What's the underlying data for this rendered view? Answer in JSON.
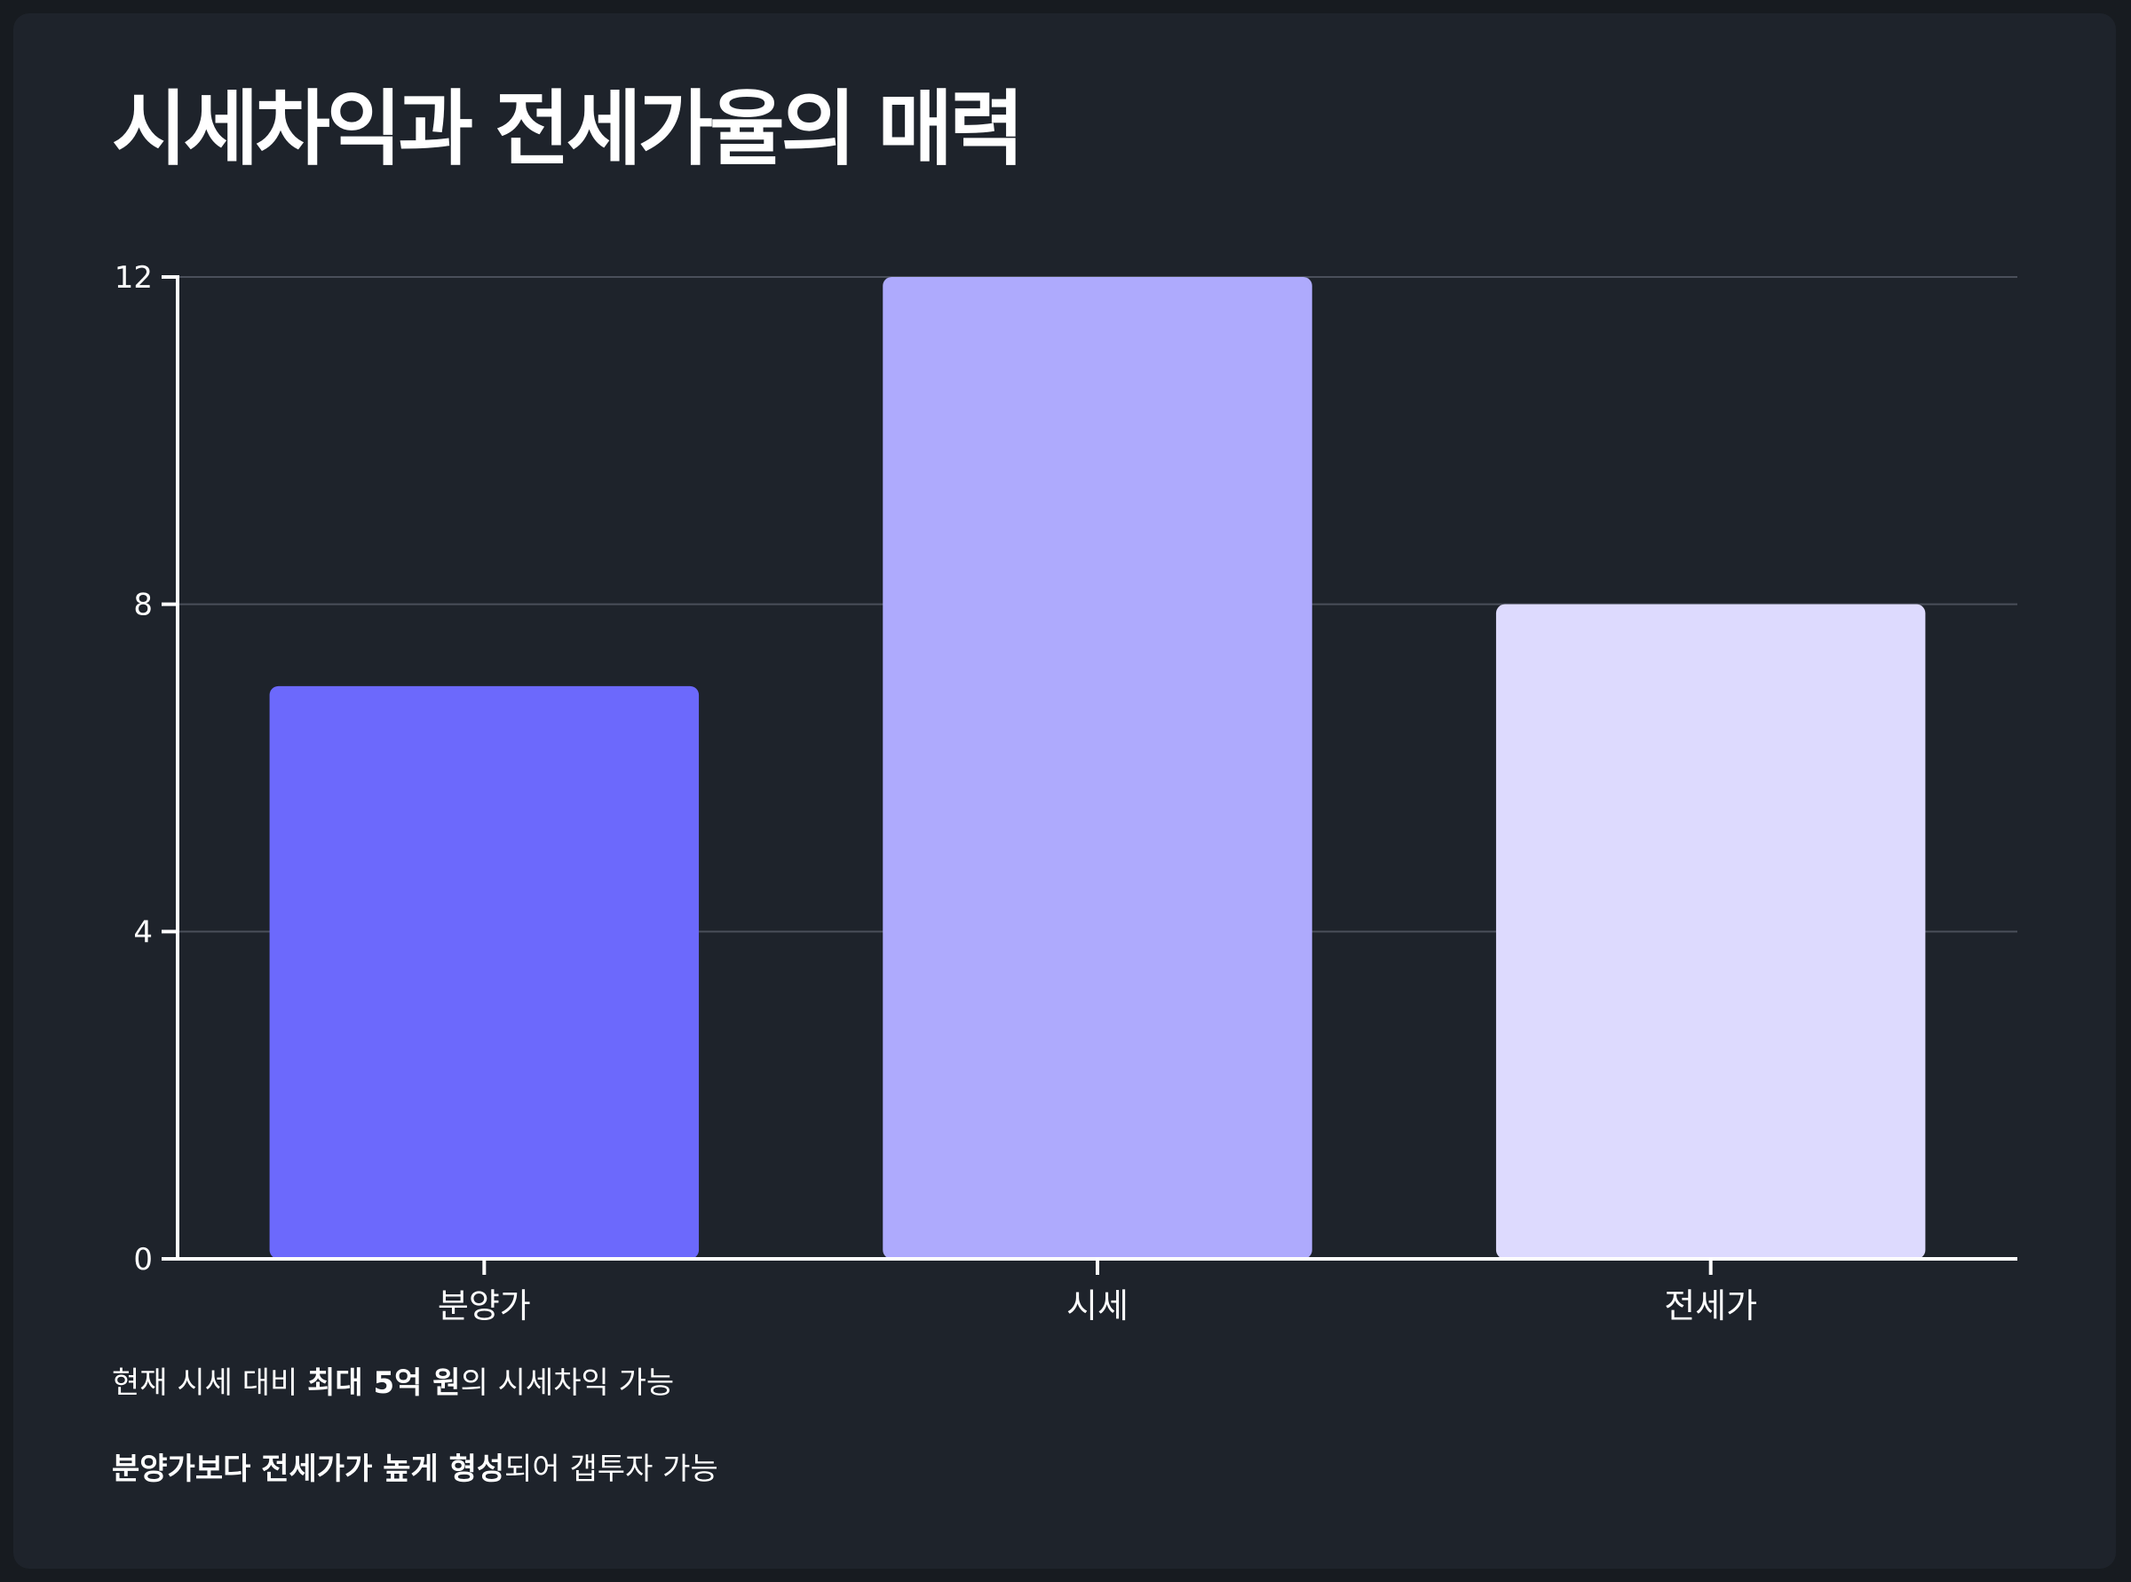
{
  "page": {
    "title": "시세차익과 전세가율의 매력"
  },
  "chart_data": {
    "type": "bar",
    "title": "시세차익과 전세가율의 매력",
    "categories": [
      "분양가",
      "시세",
      "전세가"
    ],
    "values": [
      7,
      12,
      8
    ],
    "colors": [
      "#6c69fc",
      "#aeaafd",
      "#dddafe"
    ],
    "ylim": [
      0,
      12
    ],
    "yticks": [
      0,
      4,
      8,
      12
    ],
    "ytick_labels": [
      "0",
      "4",
      "8",
      "12"
    ],
    "grid": true,
    "legend": "none",
    "xlabel": "",
    "ylabel": ""
  },
  "notes": [
    {
      "pre": "현재 시세 대비 ",
      "bold": "최대 5억 원",
      "post": "의 시세차익 가능"
    },
    {
      "pre": "",
      "bold": "분양가보다 전세가가 높게 형성",
      "post": "되어 갭투자 가능"
    }
  ],
  "colors": {
    "background": "#1e232b",
    "gridline": "#4a4f5a",
    "axis": "#ffffff",
    "text": "#ffffff"
  }
}
